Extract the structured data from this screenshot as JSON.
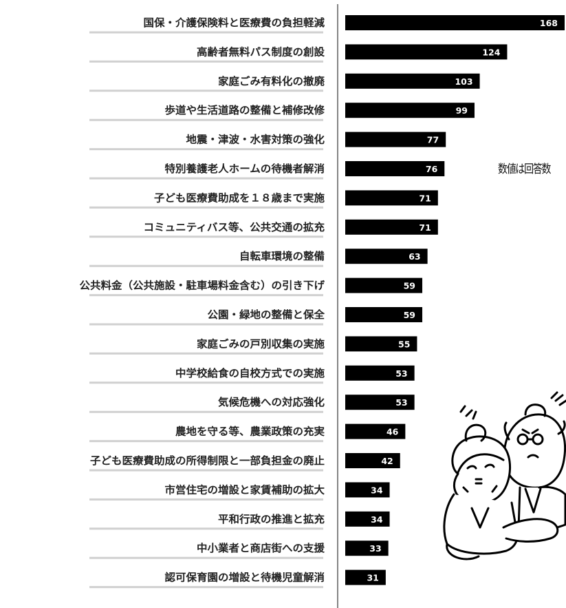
{
  "chart_data": {
    "type": "bar",
    "orientation": "horizontal",
    "categories": [
      "国保・介護保険料と医療費の負担軽減",
      "高齢者無料パス制度の創設",
      "家庭ごみ有料化の撤廃",
      "歩道や生活道路の整備と補修改修",
      "地震・津波・水害対策の強化",
      "特別養護老人ホームの待機者解消",
      "子ども医療費助成を１８歳まで実施",
      "コミュニティバス等、公共交通の拡充",
      "自転車環境の整備",
      "公共料金（公共施設・駐車場料金含む）の引き下げ",
      "公園・緑地の整備と保全",
      "家庭ごみの戸別収集の実施",
      "中学校給食の自校方式での実施",
      "気候危機への対応強化",
      "農地を守る等、農業政策の充実",
      "子ども医療費助成の所得制限と一部負担金の廃止",
      "市営住宅の増設と家賃補助の拡大",
      "平和行政の推進と拡充",
      "中小業者と商店街への支援",
      "認可保育園の増設と待機児童解消"
    ],
    "values": [
      168,
      124,
      103,
      99,
      77,
      76,
      71,
      71,
      63,
      59,
      59,
      55,
      53,
      53,
      46,
      42,
      34,
      34,
      33,
      31
    ],
    "bar_color": "#000000",
    "value_label_color": "#ffffff",
    "annotation": "数値は回答数",
    "grid": false,
    "legend": "none"
  },
  "illustration": {
    "icon": "elderly-couple-illustration"
  }
}
